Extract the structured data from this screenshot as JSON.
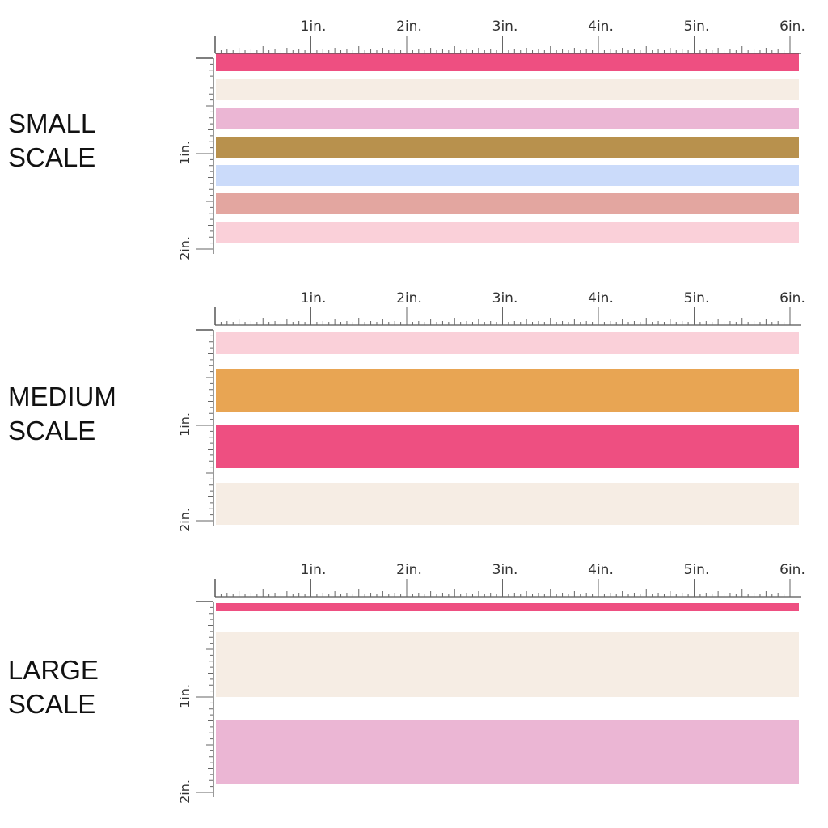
{
  "scales": [
    {
      "label_line1": "SMALL",
      "label_line2": "SCALE",
      "top_labels": [
        "1in.",
        "2in.",
        "3in.",
        "4in.",
        "5in.",
        "6in."
      ],
      "side_labels": [
        "1in.",
        "2in."
      ],
      "stripes": [
        {
          "color": "#ee4f81"
        },
        {
          "color": "#f6ede4"
        },
        {
          "color": "#ebb6d4"
        },
        {
          "color": "#b8914d"
        },
        {
          "color": "#cbdbfa"
        },
        {
          "color": "#e3a6a0"
        },
        {
          "color": "#fad0d9"
        }
      ]
    },
    {
      "label_line1": "MEDIUM",
      "label_line2": "SCALE",
      "top_labels": [
        "1in.",
        "2in.",
        "3in.",
        "4in.",
        "5in.",
        "6in."
      ],
      "side_labels": [
        "1in.",
        "2in."
      ],
      "stripes": [
        {
          "color": "#fad0d9"
        },
        {
          "color": "#e8a553"
        },
        {
          "color": "#ee4f81"
        },
        {
          "color": "#f6ede4"
        }
      ]
    },
    {
      "label_line1": "LARGE",
      "label_line2": "SCALE",
      "top_labels": [
        "1in.",
        "2in.",
        "3in.",
        "4in.",
        "5in.",
        "6in."
      ],
      "side_labels": [
        "1in.",
        "2in."
      ],
      "stripes": [
        {
          "color": "#ee4f81"
        },
        {
          "color": "#f6ede4"
        },
        {
          "color": "#ebb6d4"
        }
      ]
    }
  ]
}
